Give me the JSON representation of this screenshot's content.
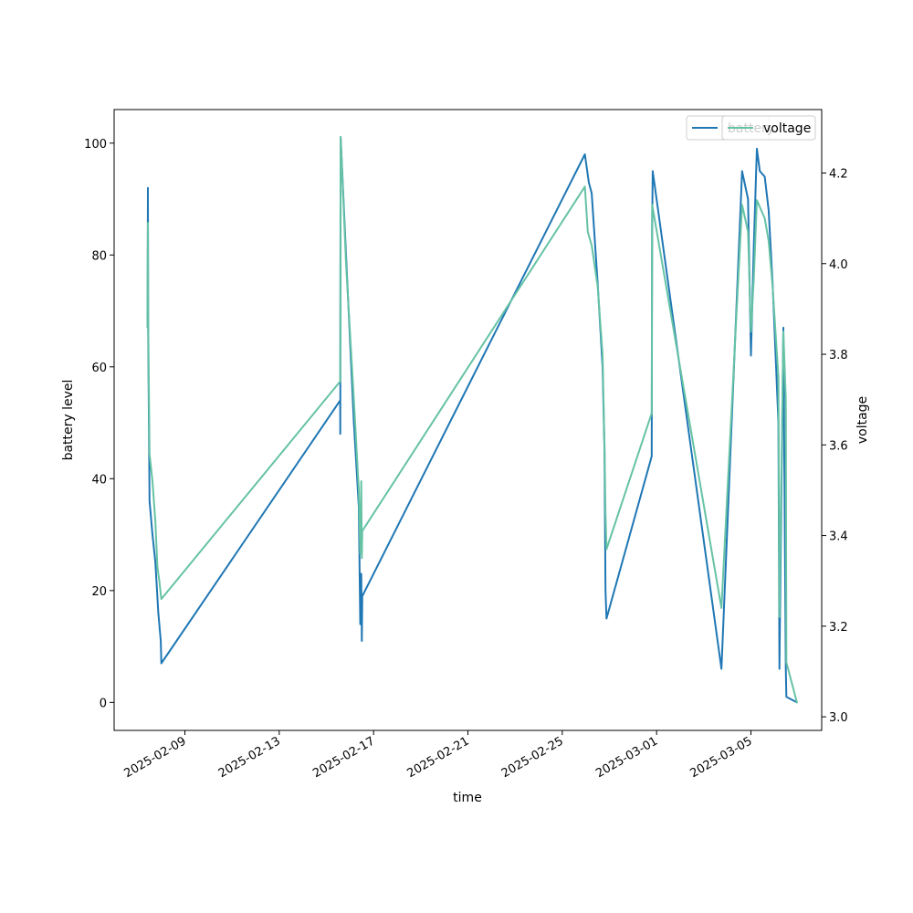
{
  "chart_data": {
    "type": "line",
    "xlabel": "time",
    "ylabel_left": "battery level",
    "ylabel_right": "voltage",
    "x_axis": {
      "type": "date",
      "range": [
        "2025-02-06",
        "2025-03-08"
      ],
      "tick_labels": [
        "2025-02-09",
        "2025-02-13",
        "2025-02-17",
        "2025-02-21",
        "2025-02-25",
        "2025-03-01",
        "2025-03-05"
      ]
    },
    "ylim_left": [
      -5,
      106
    ],
    "yticks_left": [
      "0",
      "20",
      "40",
      "60",
      "80",
      "100"
    ],
    "ylim_right": [
      2.97,
      4.34
    ],
    "yticks_right": [
      "3.0",
      "3.2",
      "3.4",
      "3.6",
      "3.8",
      "4.0",
      "4.2"
    ],
    "grid": false,
    "legends": [
      {
        "placement": "top-right",
        "entries": [
          {
            "label": "battery",
            "color": "#1f77b4"
          }
        ]
      },
      {
        "placement": "top-right",
        "entries": [
          {
            "label": "voltage",
            "color": "#66c2a5"
          }
        ]
      }
    ],
    "series": [
      {
        "name": "battery",
        "axis": "left",
        "color": "#1f77b4",
        "points": [
          [
            "2025-02-07 10:00",
            67
          ],
          [
            "2025-02-07 10:20",
            92
          ],
          [
            "2025-02-07 10:40",
            66
          ],
          [
            "2025-02-07 12:00",
            36
          ],
          [
            "2025-02-07 15:00",
            30
          ],
          [
            "2025-02-07 18:00",
            25
          ],
          [
            "2025-02-07 21:00",
            16
          ],
          [
            "2025-02-07 23:30",
            11
          ],
          [
            "2025-02-08 00:00",
            7
          ],
          [
            "2025-02-15 14:00",
            54
          ],
          [
            "2025-02-15 14:10",
            48
          ],
          [
            "2025-02-15 14:30",
            101
          ],
          [
            "2025-02-15 20:00",
            80
          ],
          [
            "2025-02-16 04:00",
            50
          ],
          [
            "2025-02-16 09:00",
            35
          ],
          [
            "2025-02-16 10:30",
            14
          ],
          [
            "2025-02-16 11:30",
            23
          ],
          [
            "2025-02-16 12:00",
            11
          ],
          [
            "2025-02-16 12:30",
            19
          ],
          [
            "2025-02-25 23:00",
            98
          ],
          [
            "2025-02-26 03:00",
            93
          ],
          [
            "2025-02-26 06:00",
            91
          ],
          [
            "2025-02-26 12:00",
            75
          ],
          [
            "2025-02-26 17:00",
            60
          ],
          [
            "2025-02-26 19:00",
            45
          ],
          [
            "2025-02-26 20:00",
            20
          ],
          [
            "2025-02-26 21:00",
            15
          ],
          [
            "2025-02-28 19:00",
            44
          ],
          [
            "2025-02-28 19:30",
            85
          ],
          [
            "2025-02-28 20:00",
            95
          ],
          [
            "2025-03-03 18:00",
            6
          ],
          [
            "2025-03-04 15:00",
            95
          ],
          [
            "2025-03-04 21:00",
            90
          ],
          [
            "2025-03-05 00:00",
            62
          ],
          [
            "2025-03-05 03:00",
            82
          ],
          [
            "2025-03-05 06:00",
            99
          ],
          [
            "2025-03-05 09:00",
            95
          ],
          [
            "2025-03-05 14:00",
            94
          ],
          [
            "2025-03-05 18:00",
            88
          ],
          [
            "2025-03-05 22:00",
            75
          ],
          [
            "2025-03-06 04:00",
            50
          ],
          [
            "2025-03-06 05:00",
            6
          ],
          [
            "2025-03-06 05:30",
            15
          ],
          [
            "2025-03-06 09:00",
            67
          ],
          [
            "2025-03-06 11:30",
            6
          ],
          [
            "2025-03-06 12:00",
            1
          ],
          [
            "2025-03-06 23:00",
            0
          ]
        ]
      },
      {
        "name": "voltage",
        "axis": "right",
        "color": "#66c2a5",
        "points": [
          [
            "2025-02-07 10:00",
            3.86
          ],
          [
            "2025-02-07 10:20",
            4.09
          ],
          [
            "2025-02-07 10:40",
            3.88
          ],
          [
            "2025-02-07 12:00",
            3.58
          ],
          [
            "2025-02-07 15:00",
            3.52
          ],
          [
            "2025-02-07 18:00",
            3.43
          ],
          [
            "2025-02-07 20:00",
            3.33
          ],
          [
            "2025-02-07 22:00",
            3.3
          ],
          [
            "2025-02-08 00:00",
            3.26
          ],
          [
            "2025-02-15 14:00",
            3.74
          ],
          [
            "2025-02-15 14:30",
            4.28
          ],
          [
            "2025-02-15 20:00",
            4.0
          ],
          [
            "2025-02-16 04:00",
            3.7
          ],
          [
            "2025-02-16 09:00",
            3.5
          ],
          [
            "2025-02-16 10:30",
            3.36
          ],
          [
            "2025-02-16 11:30",
            3.52
          ],
          [
            "2025-02-16 12:00",
            3.35
          ],
          [
            "2025-02-16 12:30",
            3.41
          ],
          [
            "2025-02-25 23:00",
            4.17
          ],
          [
            "2025-02-26 02:00",
            4.07
          ],
          [
            "2025-02-26 06:00",
            4.04
          ],
          [
            "2025-02-26 12:00",
            3.95
          ],
          [
            "2025-02-26 17:00",
            3.8
          ],
          [
            "2025-02-26 19:00",
            3.6
          ],
          [
            "2025-02-26 20:00",
            3.45
          ],
          [
            "2025-02-26 21:00",
            3.37
          ],
          [
            "2025-02-28 19:00",
            3.67
          ],
          [
            "2025-02-28 19:30",
            4.13
          ],
          [
            "2025-03-03 18:00",
            3.24
          ],
          [
            "2025-03-04 15:00",
            4.13
          ],
          [
            "2025-03-04 21:00",
            4.07
          ],
          [
            "2025-03-05 00:00",
            3.85
          ],
          [
            "2025-03-05 03:00",
            3.97
          ],
          [
            "2025-03-05 06:00",
            4.14
          ],
          [
            "2025-03-05 10:00",
            4.12
          ],
          [
            "2025-03-05 14:00",
            4.1
          ],
          [
            "2025-03-05 18:00",
            4.05
          ],
          [
            "2025-03-05 22:00",
            3.95
          ],
          [
            "2025-03-06 04:00",
            3.75
          ],
          [
            "2025-03-06 05:00",
            3.22
          ],
          [
            "2025-03-06 09:00",
            3.85
          ],
          [
            "2025-03-06 11:30",
            3.7
          ],
          [
            "2025-03-06 12:00",
            3.12
          ],
          [
            "2025-03-06 23:00",
            3.03
          ]
        ]
      }
    ]
  }
}
